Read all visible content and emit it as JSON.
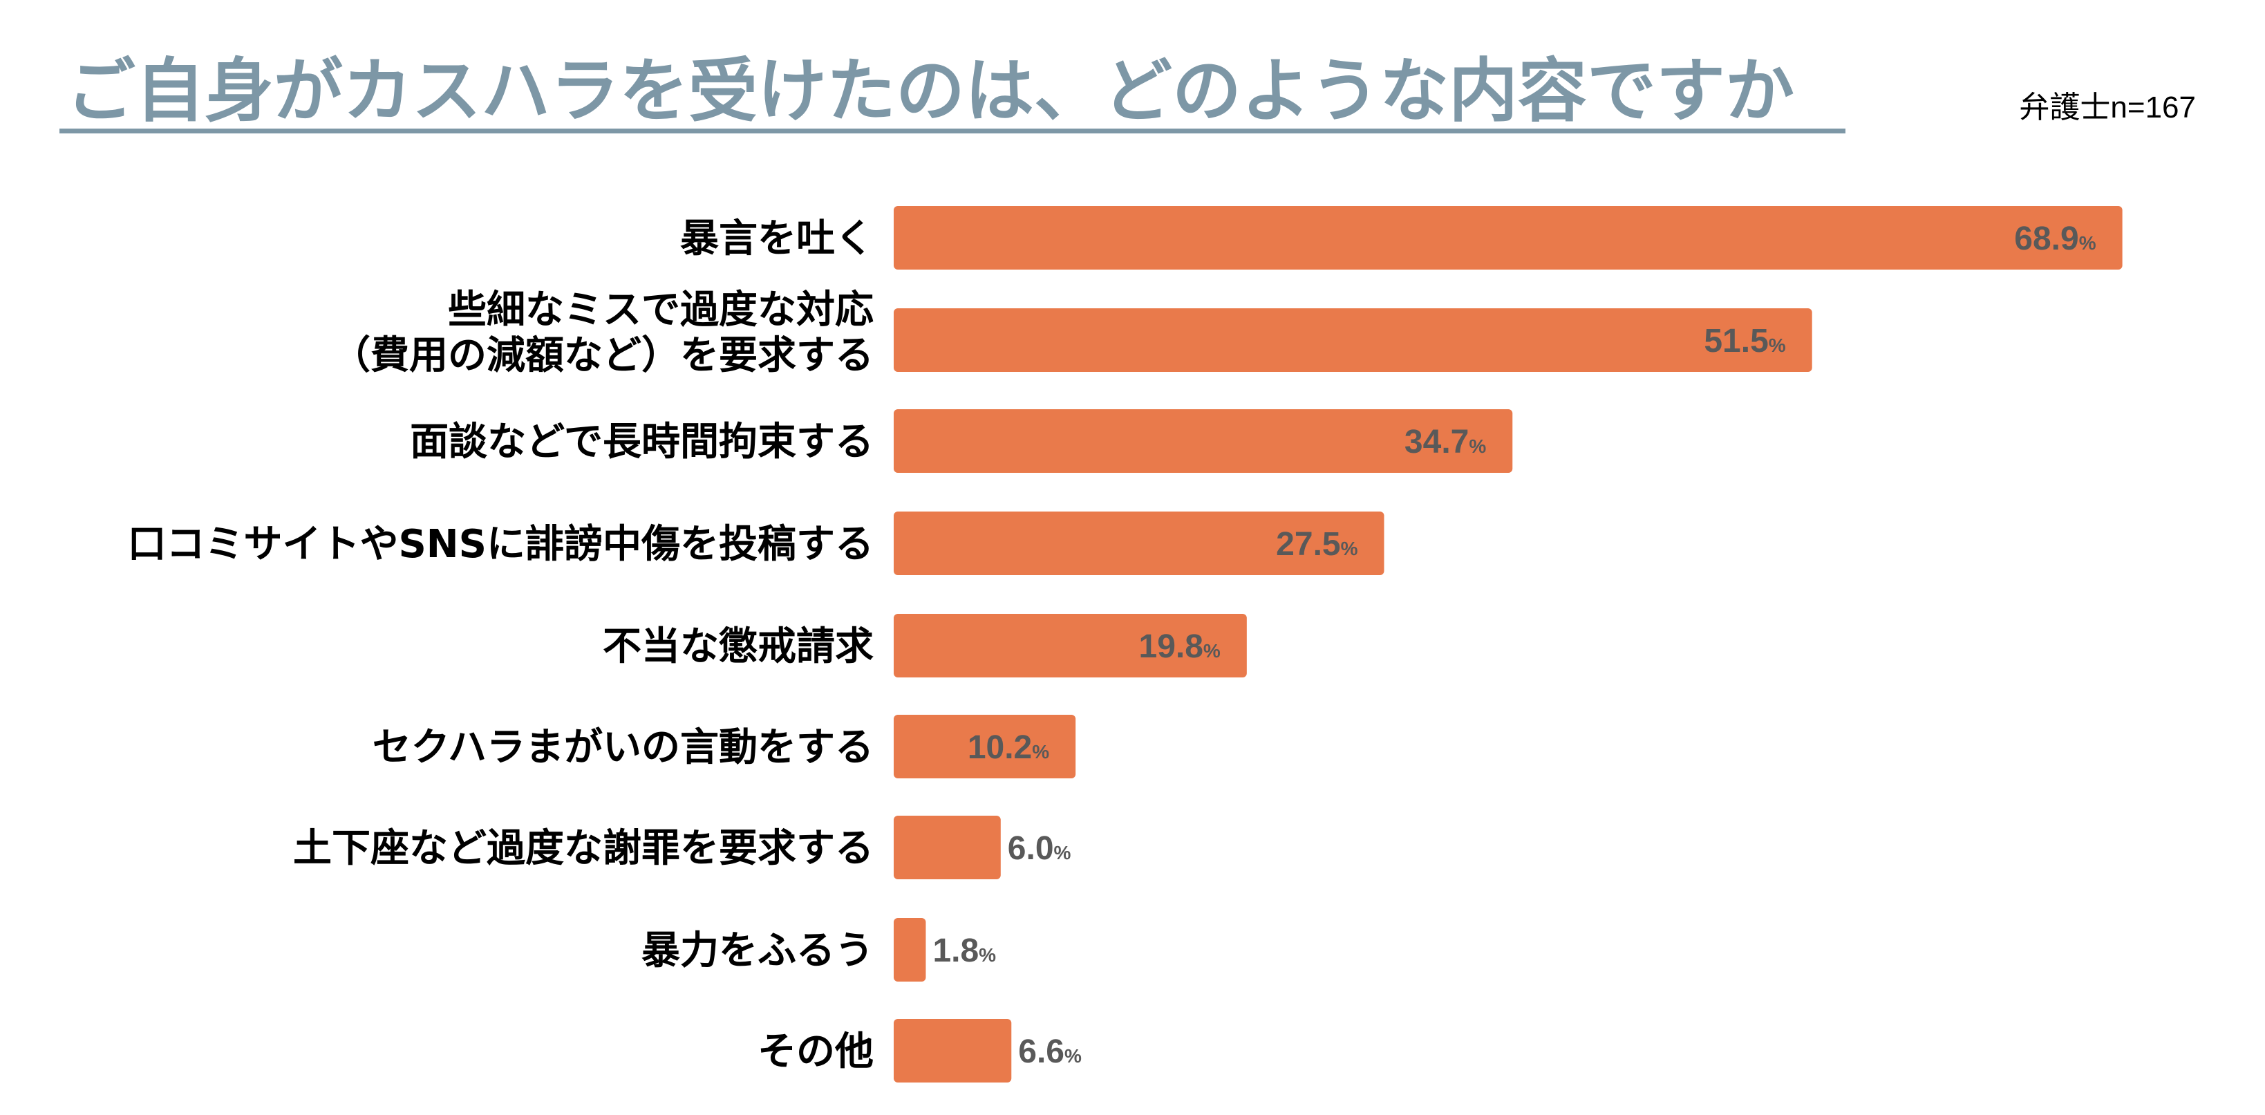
{
  "chart_data": {
    "type": "bar",
    "orientation": "horizontal",
    "title": "ご自身がカスハラを受けたのは、どのような内容ですか",
    "subtitle": "弁護士n=167",
    "xlabel": "",
    "ylabel": "",
    "unit": "%",
    "xlim": [
      0,
      100
    ],
    "grid": false,
    "legend": "none",
    "bar_color": "#e97a4b",
    "categories": [
      [
        "暴言を吐く"
      ],
      [
        "些細なミスで過度な対応",
        "（費用の減額など）を要求する"
      ],
      [
        "面談などで長時間拘束する"
      ],
      [
        "口コミサイトやSNSに誹謗中傷を投稿する"
      ],
      [
        "不当な懲戒請求"
      ],
      [
        "セクハラまがいの言動をする"
      ],
      [
        "土下座など過度な謝罪を要求する"
      ],
      [
        "暴力をふるう"
      ],
      [
        "その他"
      ]
    ],
    "values": [
      68.9,
      51.5,
      34.7,
      27.5,
      19.8,
      10.2,
      6.0,
      1.8,
      6.6
    ]
  }
}
